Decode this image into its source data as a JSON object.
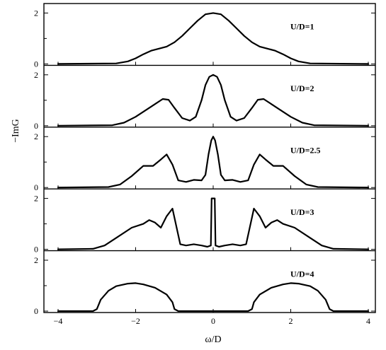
{
  "chart_data": {
    "type": "line",
    "xlabel": "ω/D",
    "ylabel": "−ImG",
    "xlim": [
      -4.4,
      4.4
    ],
    "x_ticks": [
      -4,
      -2,
      0,
      2,
      4
    ],
    "x_tick_labels": [
      "−4",
      "−2",
      "0",
      "2",
      "4"
    ],
    "panels": [
      {
        "label": "U/D=1",
        "ylim": [
          0,
          2.3
        ],
        "y_ticks": [
          0,
          2
        ],
        "y_tick_labels": [
          "0",
          "2"
        ],
        "series": [
          {
            "x": [
              -4,
              -2.5,
              -2.2,
              -2.0,
              -1.8,
              -1.6,
              -1.4,
              -1.2,
              -1.0,
              -0.8,
              -0.6,
              -0.4,
              -0.2,
              0,
              0.2,
              0.4,
              0.6,
              0.8,
              1.0,
              1.2,
              1.4,
              1.6,
              1.8,
              2.0,
              2.2,
              2.5,
              4
            ],
            "y": [
              0,
              0.02,
              0.1,
              0.22,
              0.38,
              0.52,
              0.6,
              0.68,
              0.85,
              1.1,
              1.4,
              1.7,
              1.95,
              2.0,
              1.95,
              1.7,
              1.4,
              1.1,
              0.85,
              0.68,
              0.6,
              0.52,
              0.38,
              0.22,
              0.1,
              0.02,
              0
            ]
          }
        ]
      },
      {
        "label": "U/D=2",
        "ylim": [
          0,
          2.3
        ],
        "y_ticks": [
          0,
          2
        ],
        "y_tick_labels": [
          "0",
          "2"
        ],
        "series": [
          {
            "x": [
              -4,
              -2.6,
              -2.3,
              -2.0,
              -1.7,
              -1.5,
              -1.3,
              -1.15,
              -1.0,
              -0.8,
              -0.6,
              -0.45,
              -0.3,
              -0.2,
              -0.1,
              0,
              0.1,
              0.2,
              0.3,
              0.45,
              0.6,
              0.8,
              1.0,
              1.15,
              1.3,
              1.5,
              1.7,
              2.0,
              2.3,
              2.6,
              4
            ],
            "y": [
              0,
              0.02,
              0.12,
              0.35,
              0.65,
              0.85,
              1.05,
              1.02,
              0.7,
              0.3,
              0.2,
              0.35,
              1.0,
              1.6,
              1.92,
              2.0,
              1.92,
              1.6,
              1.0,
              0.35,
              0.2,
              0.3,
              0.7,
              1.02,
              1.05,
              0.85,
              0.65,
              0.35,
              0.12,
              0.02,
              0
            ]
          }
        ]
      },
      {
        "label": "U/D=2.5",
        "ylim": [
          0,
          2.3
        ],
        "y_ticks": [
          0,
          2
        ],
        "y_tick_labels": [
          "0",
          "2"
        ],
        "series": [
          {
            "x": [
              -4,
              -2.7,
              -2.4,
              -2.1,
              -1.8,
              -1.55,
              -1.35,
              -1.2,
              -1.05,
              -0.9,
              -0.7,
              -0.5,
              -0.3,
              -0.2,
              -0.12,
              -0.05,
              0,
              0.05,
              0.12,
              0.2,
              0.3,
              0.5,
              0.7,
              0.9,
              1.05,
              1.2,
              1.35,
              1.55,
              1.8,
              2.1,
              2.4,
              2.7,
              4
            ],
            "y": [
              0,
              0.02,
              0.12,
              0.45,
              0.85,
              0.85,
              1.1,
              1.3,
              0.9,
              0.28,
              0.22,
              0.3,
              0.28,
              0.5,
              1.3,
              1.85,
              2.0,
              1.85,
              1.3,
              0.5,
              0.28,
              0.3,
              0.22,
              0.28,
              0.9,
              1.3,
              1.1,
              0.85,
              0.85,
              0.45,
              0.12,
              0.02,
              0
            ]
          }
        ]
      },
      {
        "label": "U/D=3",
        "ylim": [
          0,
          2.3
        ],
        "y_ticks": [
          0,
          2
        ],
        "y_tick_labels": [
          "0",
          "2"
        ],
        "series": [
          {
            "x": [
              -4,
              -3.1,
              -2.8,
              -2.5,
              -2.1,
              -1.8,
              -1.65,
              -1.5,
              -1.35,
              -1.2,
              -1.05,
              -0.95,
              -0.85,
              -0.7,
              -0.5,
              -0.3,
              -0.15,
              -0.06,
              -0.04,
              0,
              0.04,
              0.06,
              0.15,
              0.3,
              0.5,
              0.7,
              0.85,
              0.95,
              1.05,
              1.2,
              1.35,
              1.5,
              1.65,
              1.8,
              2.1,
              2.5,
              2.8,
              3.1,
              4
            ],
            "y": [
              0,
              0.02,
              0.15,
              0.45,
              0.85,
              1.0,
              1.15,
              1.05,
              0.85,
              1.3,
              1.6,
              0.9,
              0.2,
              0.15,
              0.2,
              0.15,
              0.1,
              0.15,
              2.0,
              2.0,
              2.0,
              0.15,
              0.1,
              0.15,
              0.2,
              0.15,
              0.2,
              0.9,
              1.6,
              1.3,
              0.85,
              1.05,
              1.15,
              1.0,
              0.85,
              0.45,
              0.15,
              0.02,
              0
            ]
          }
        ]
      },
      {
        "label": "U/D=4",
        "ylim": [
          0,
          2.3
        ],
        "y_ticks": [
          0,
          2
        ],
        "y_tick_labels": [
          "0",
          "2"
        ],
        "series": [
          {
            "x": [
              -4,
              -3.1,
              -3.0,
              -2.9,
              -2.7,
              -2.5,
              -2.2,
              -2.0,
              -1.8,
              -1.5,
              -1.2,
              -1.05,
              -1.0,
              -0.9,
              0.9,
              1.0,
              1.05,
              1.2,
              1.5,
              1.8,
              2.0,
              2.2,
              2.5,
              2.7,
              2.9,
              3.0,
              3.1,
              4
            ],
            "y": [
              0,
              0,
              0.08,
              0.45,
              0.8,
              0.98,
              1.08,
              1.1,
              1.05,
              0.92,
              0.65,
              0.35,
              0.08,
              0,
              0,
              0.08,
              0.35,
              0.65,
              0.92,
              1.05,
              1.1,
              1.08,
              0.98,
              0.8,
              0.45,
              0.08,
              0,
              0
            ]
          }
        ]
      }
    ]
  }
}
